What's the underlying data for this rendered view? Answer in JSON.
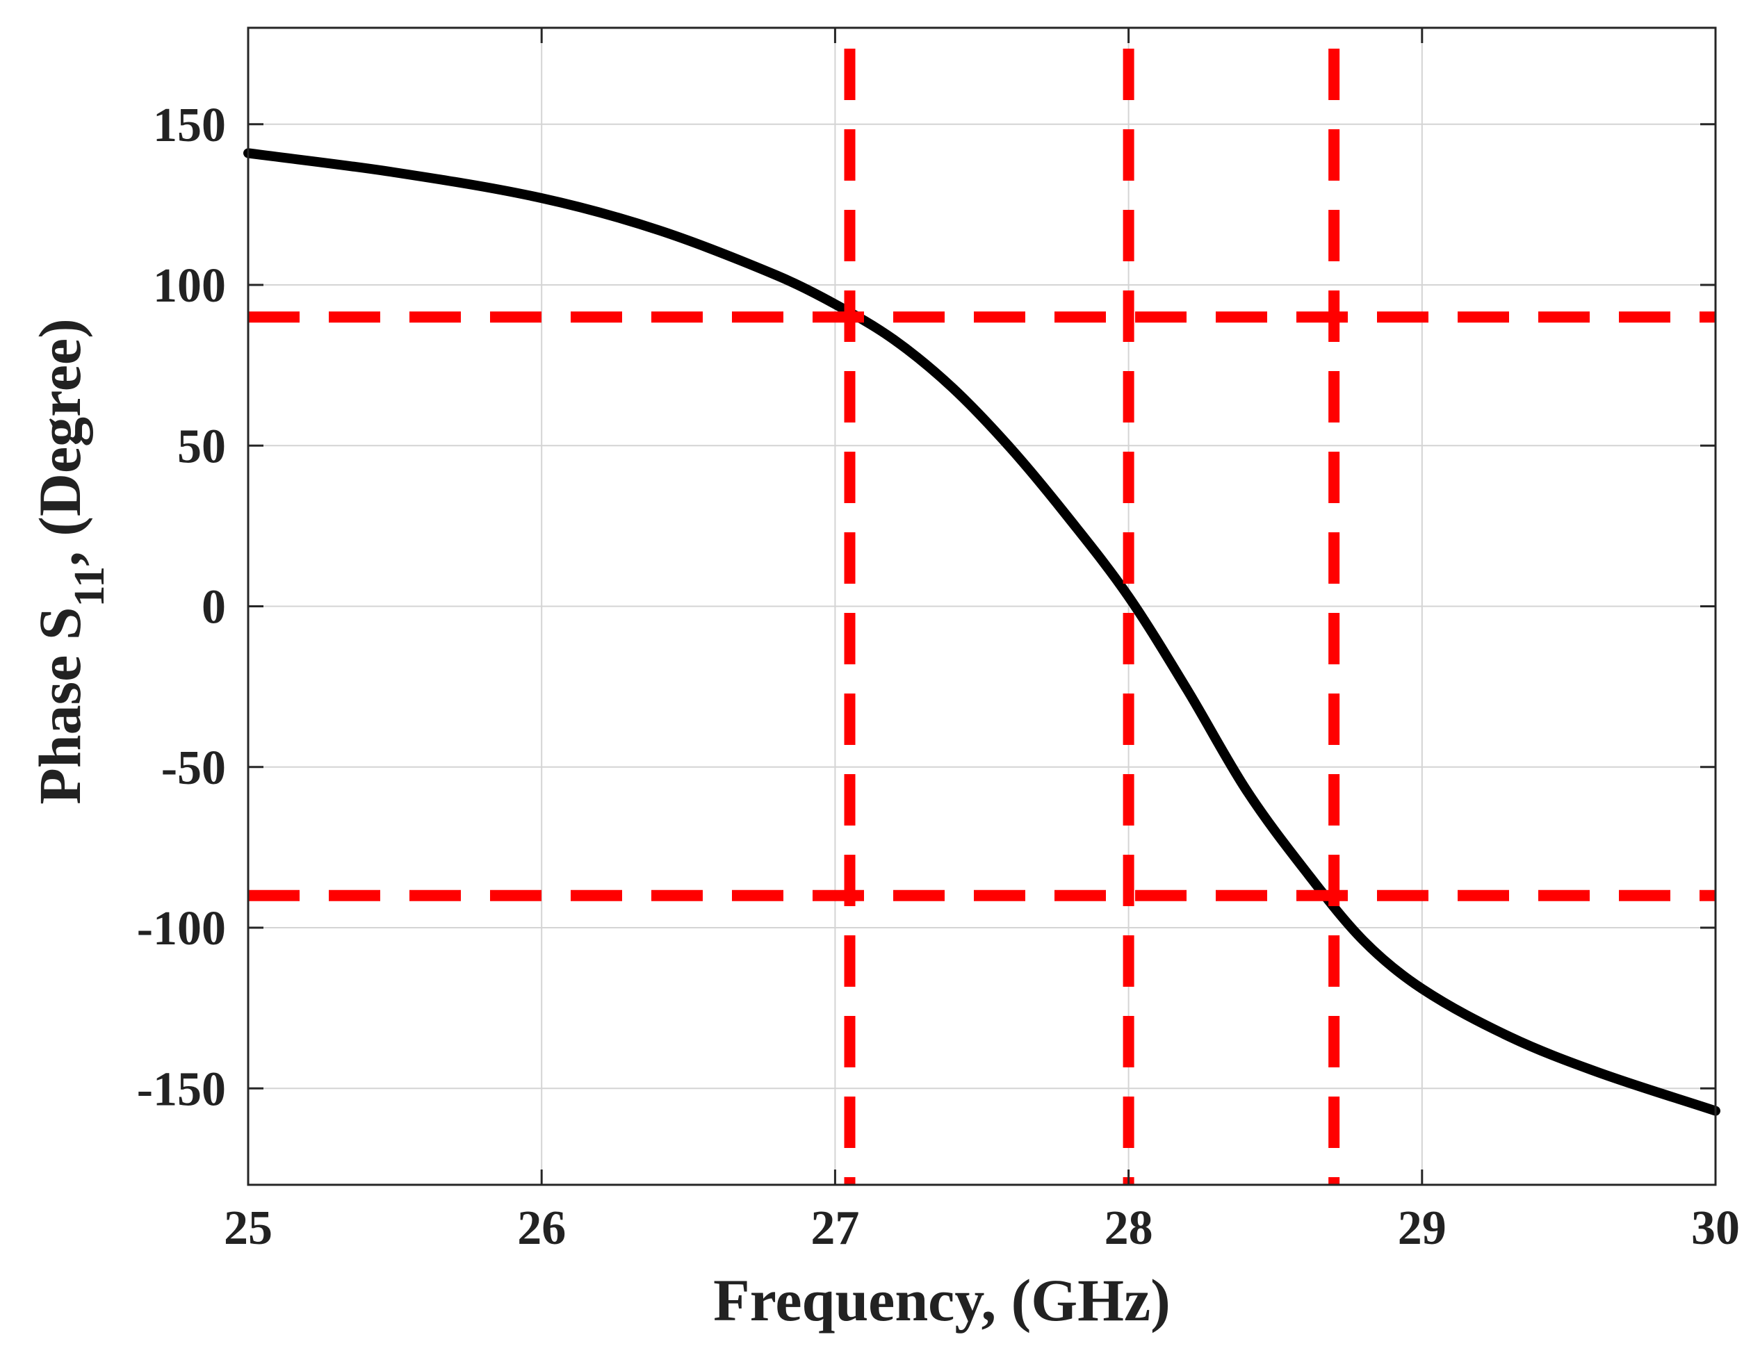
{
  "chart_data": {
    "type": "line",
    "title": "",
    "xlabel": "Frequency, (GHz)",
    "ylabel": {
      "prefix": "Phase S",
      "subscript": "11",
      "suffix": ", (Degree)"
    },
    "xlim": [
      25,
      30
    ],
    "ylim": [
      -180,
      180
    ],
    "xticks": [
      25,
      26,
      27,
      28,
      29,
      30
    ],
    "yticks": [
      -150,
      -100,
      -50,
      0,
      50,
      100,
      150
    ],
    "xtick_labels": [
      "25",
      "26",
      "27",
      "28",
      "29",
      "30"
    ],
    "ytick_labels": [
      "-150",
      "-100",
      "-50",
      "0",
      "50",
      "100",
      "150"
    ],
    "grid": true,
    "series": [
      {
        "name": "Phase S11",
        "color": "#000000",
        "x": [
          25.0,
          25.5,
          26.0,
          26.4,
          26.8,
          27.0,
          27.2,
          27.4,
          27.6,
          27.8,
          28.0,
          28.2,
          28.4,
          28.6,
          28.8,
          29.0,
          29.3,
          29.6,
          30.0
        ],
        "y": [
          141,
          135,
          127,
          117,
          103,
          94,
          83,
          68,
          49,
          27,
          3,
          -26,
          -57,
          -82,
          -104,
          -119,
          -134,
          -145,
          -157
        ]
      }
    ],
    "reference_lines": {
      "color": "#ff0000",
      "style": "dashed",
      "horizontal_y": [
        90,
        -90
      ],
      "vertical_x": [
        27.05,
        28.0,
        28.7
      ]
    }
  }
}
